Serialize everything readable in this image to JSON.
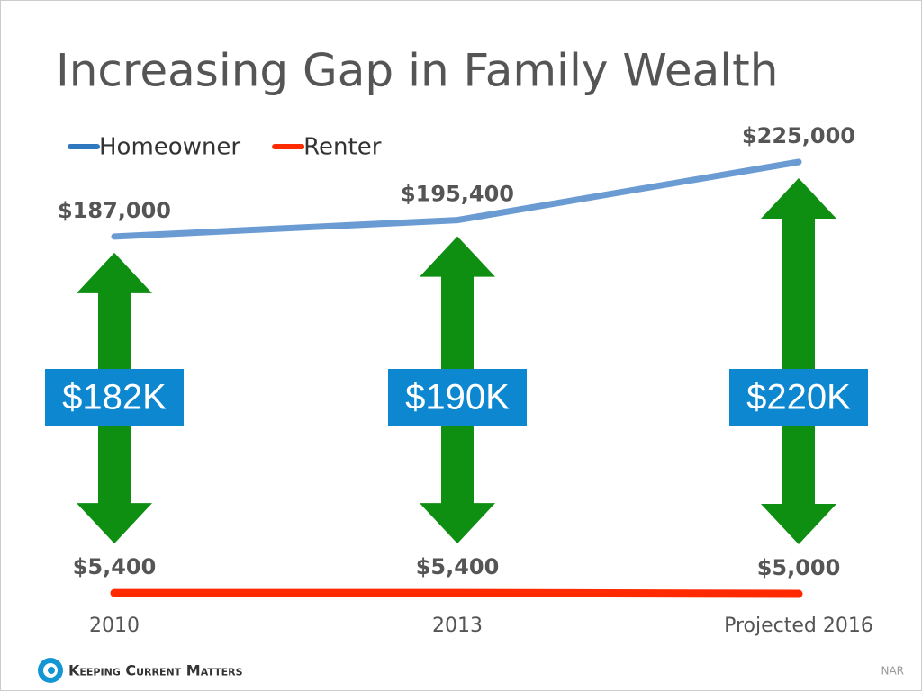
{
  "chart_data": {
    "type": "line",
    "title": "Increasing Gap in Family Wealth",
    "categories": [
      "2010",
      "2013",
      "Projected 2016"
    ],
    "series": [
      {
        "name": "Homeowner",
        "color": "#6a9bd3",
        "legend_color": "#2f78c0",
        "values": [
          187000,
          195400,
          225000
        ],
        "value_labels": [
          "$187,000",
          "$195,400",
          "$225,000"
        ]
      },
      {
        "name": "Renter",
        "color": "#ff2a00",
        "legend_color": "#ff2a00",
        "values": [
          5400,
          5400,
          5000
        ],
        "value_labels": [
          "$5,400",
          "$5,400",
          "$5,000"
        ]
      }
    ],
    "annotations": [
      "$182K",
      "$190K",
      "$220K"
    ],
    "annotation_color": "#0d87d0",
    "arrow_color": "#0f8f12",
    "legend": "top-left",
    "brand": "Keeping Current Matters",
    "source": "NAR"
  }
}
